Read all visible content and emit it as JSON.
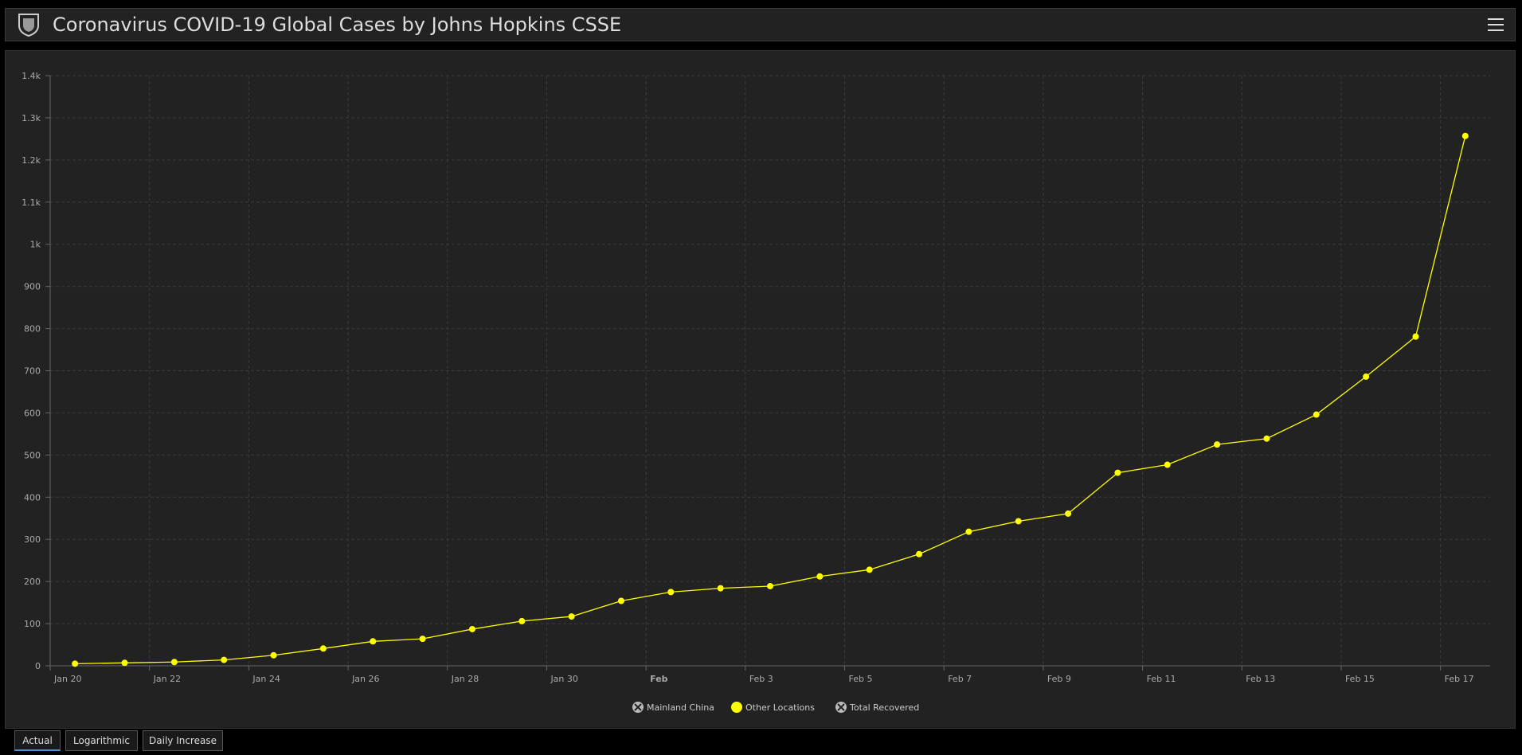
{
  "header": {
    "title": "Coronavirus COVID-19 Global Cases by Johns Hopkins CSSE"
  },
  "tabs": [
    {
      "label": "Actual",
      "active": true
    },
    {
      "label": "Logarithmic",
      "active": false
    },
    {
      "label": "Daily Increase",
      "active": false
    }
  ],
  "chart_data": {
    "type": "line",
    "x": [
      "Jan 20",
      "Jan 21",
      "Jan 22",
      "Jan 23",
      "Jan 24",
      "Jan 25",
      "Jan 26",
      "Jan 27",
      "Jan 28",
      "Jan 29",
      "Jan 30",
      "Jan 31",
      "Feb 1",
      "Feb 2",
      "Feb 3",
      "Feb 4",
      "Feb 5",
      "Feb 6",
      "Feb 7",
      "Feb 8",
      "Feb 9",
      "Feb 10",
      "Feb 11",
      "Feb 12",
      "Feb 13",
      "Feb 14",
      "Feb 15",
      "Feb 16",
      "Feb 17"
    ],
    "xticks": [
      "Jan 20",
      "Jan 22",
      "Jan 24",
      "Jan 26",
      "Jan 28",
      "Jan 30",
      {
        "value": "Feb 1",
        "label": "Feb"
      },
      "Feb 3",
      "Feb 5",
      "Feb 7",
      "Feb 9",
      "Feb 11",
      "Feb 13",
      "Feb 15",
      "Feb 17"
    ],
    "series": [
      {
        "name": "Mainland China",
        "hidden": true
      },
      {
        "name": "Other Locations",
        "color": "#ffff00",
        "values": [
          5,
          7,
          9,
          14,
          25,
          41,
          58,
          64,
          87,
          106,
          117,
          154,
          175,
          184,
          189,
          212,
          228,
          265,
          318,
          343,
          361,
          458,
          477,
          525,
          539,
          596,
          686,
          781,
          1257
        ]
      },
      {
        "name": "Total Recovered",
        "hidden": true
      }
    ],
    "ylim": [
      0,
      1400
    ],
    "yticks": [
      0,
      100,
      200,
      300,
      400,
      500,
      600,
      700,
      800,
      900,
      {
        "value": 1000,
        "label": "1k"
      },
      {
        "value": 1100,
        "label": "1.1k"
      },
      {
        "value": 1200,
        "label": "1.2k"
      },
      {
        "value": 1300,
        "label": "1.3k"
      },
      {
        "value": 1400,
        "label": "1.4k"
      }
    ],
    "grid": true
  }
}
